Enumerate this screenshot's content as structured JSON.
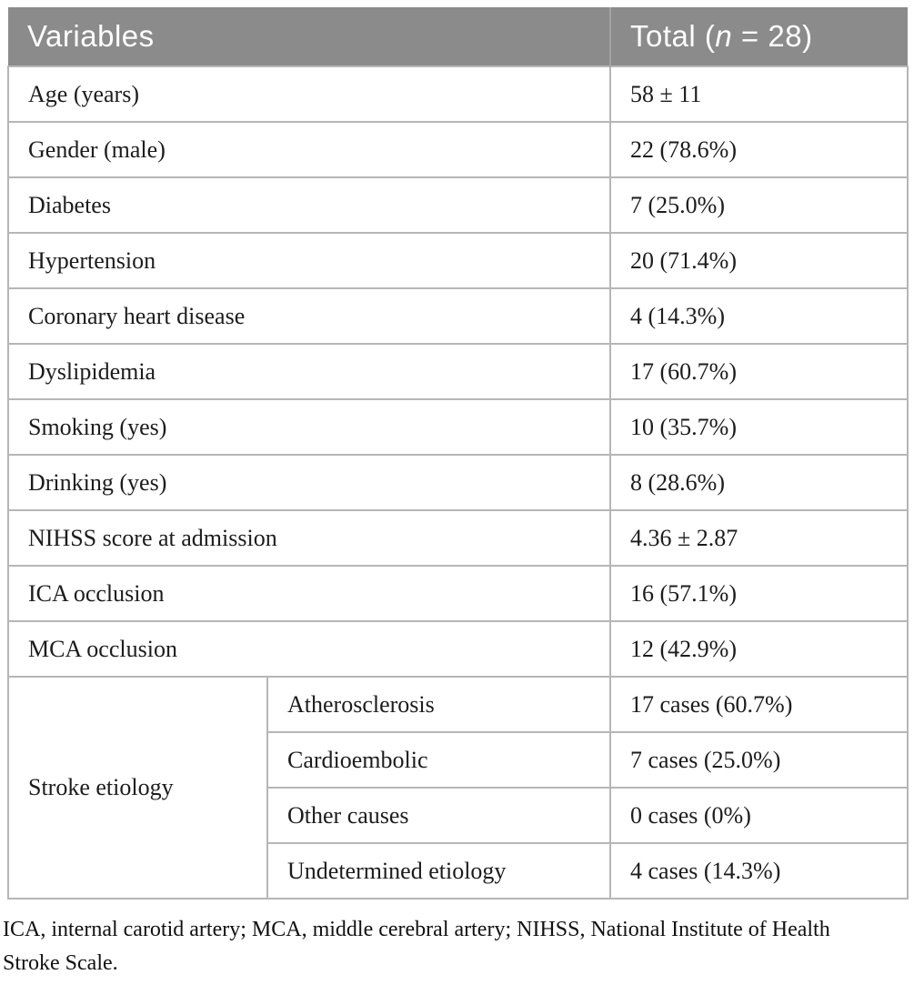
{
  "table": {
    "header": {
      "variables_label": "Variables",
      "total_prefix": "Total (",
      "total_n": "n",
      "total_suffix": " = 28)"
    },
    "rows": [
      {
        "label": "Age (years)",
        "value": "58 ± 11"
      },
      {
        "label": "Gender (male)",
        "value": "22 (78.6%)"
      },
      {
        "label": "Diabetes",
        "value": "7 (25.0%)"
      },
      {
        "label": "Hypertension",
        "value": "20 (71.4%)"
      },
      {
        "label": "Coronary heart disease",
        "value": "4 (14.3%)"
      },
      {
        "label": "Dyslipidemia",
        "value": "17 (60.7%)"
      },
      {
        "label": "Smoking (yes)",
        "value": "10 (35.7%)"
      },
      {
        "label": "Drinking (yes)",
        "value": "8 (28.6%)"
      },
      {
        "label": "NIHSS score at admission",
        "value": "4.36 ± 2.87"
      },
      {
        "label": "ICA occlusion",
        "value": "16 (57.1%)"
      },
      {
        "label": "MCA occlusion",
        "value": "12 (42.9%)"
      }
    ],
    "etiology": {
      "group_label": "Stroke etiology",
      "sub_rows": [
        {
          "label": "Atherosclerosis",
          "value": "17 cases (60.7%)"
        },
        {
          "label": "Cardioembolic",
          "value": "7 cases (25.0%)"
        },
        {
          "label": "Other causes",
          "value": "0 cases (0%)"
        },
        {
          "label": "Undetermined etiology",
          "value": "4 cases (14.3%)"
        }
      ]
    }
  },
  "footnote": "ICA, internal carotid artery; MCA, middle cerebral artery; NIHSS, National Institute of Health Stroke Scale.",
  "colors": {
    "header_bg": "#8b8b8b",
    "header_text": "#ffffff",
    "header_divider": "#a4a4a4",
    "body_border": "#b6b6b6",
    "body_text": "#1c1c1c"
  }
}
